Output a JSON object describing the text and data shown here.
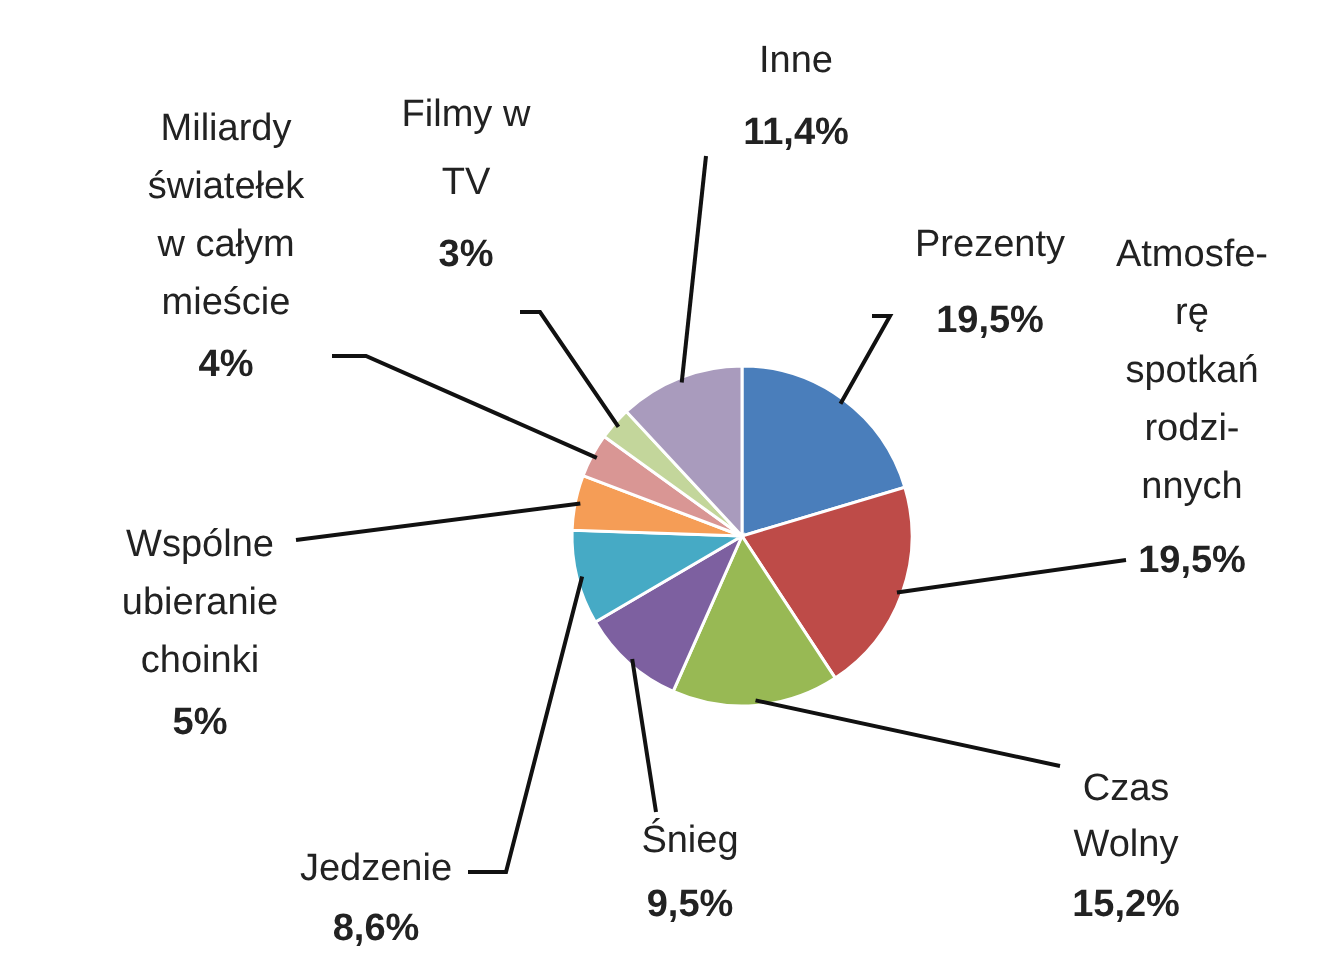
{
  "chart_data": {
    "type": "pie",
    "categories": [
      "Prezenty",
      "Atmosfe-\nrę\nspotkań\nrodzi-\nnnych",
      "Czas\nWolny",
      "Śnieg",
      "Jedzenie",
      "Wspólne\nubieranie\nchoinki",
      "Miliardy\nświatełek\nw całym\nmieście",
      "Filmy w\nTV",
      "Inne"
    ],
    "values": [
      19.5,
      19.5,
      15.2,
      9.5,
      8.6,
      5,
      4,
      3,
      11.4
    ],
    "value_labels": [
      "19,5%",
      "19,5%",
      "15,2%",
      "9,5%",
      "8,6%",
      "5%",
      "4%",
      "3%",
      "11,4%"
    ],
    "colors": [
      "#4a7ebb",
      "#be4b48",
      "#98b954",
      "#7d60a0",
      "#46aac5",
      "#f59d56",
      "#d99694",
      "#c3d69b",
      "#a99bbd"
    ]
  }
}
